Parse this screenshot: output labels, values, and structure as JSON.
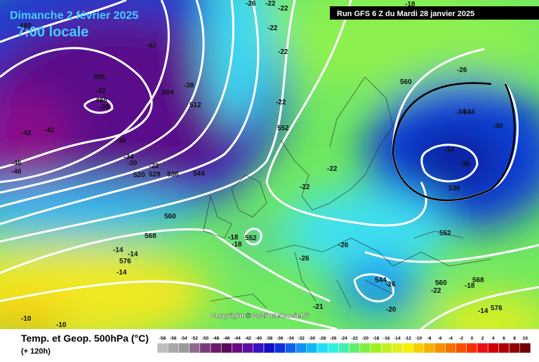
{
  "header": {
    "title": "Dimanche 2 février 2025",
    "time": "7:00 locale",
    "run": "Run GFS 6 Z du Mardi 28 janvier 2025"
  },
  "map": {
    "copyright": "Copyright © 2025 Meteociel.fr",
    "labels": [
      "480",
      "-42",
      "496",
      "-42",
      "488",
      "-38",
      "504",
      "-38",
      "512",
      "-42",
      "-42",
      "-46",
      "-46",
      "-38",
      "-34",
      "-30",
      "-22",
      "520",
      "528",
      "536",
      "544",
      "560",
      "568",
      "-14",
      "-14",
      "576",
      "-14",
      "-10",
      "-10",
      "-18",
      "-18",
      "552",
      "-26",
      "-26",
      "-22",
      "-22",
      "552",
      "-22",
      "-22",
      "-22",
      "-22",
      "-26",
      "-22",
      "-18",
      "560",
      "-26",
      "-34",
      "544",
      "-30",
      "-34",
      "-38",
      "536",
      "552",
      "544",
      "-26",
      "560",
      "-22",
      "568",
      "-18",
      "-14",
      "576",
      "-20",
      "-21"
    ]
  },
  "footer": {
    "title": "Temp. et Geop. 500hPa (°C)",
    "range": "(+ 120h)",
    "legend": {
      "labels": [
        "-58",
        "-56",
        "-54",
        "-52",
        "-50",
        "-48",
        "-46",
        "-44",
        "-42",
        "-40",
        "-38",
        "-36",
        "-34",
        "-32",
        "-30",
        "-28",
        "-26",
        "-24",
        "-22",
        "-20",
        "-18",
        "-16",
        "-14",
        "-12",
        "-10",
        "-8",
        "-6",
        "-4",
        "-2",
        "0",
        "2",
        "4",
        "6",
        "8",
        "10"
      ],
      "colors": [
        "#bdbdbd",
        "#a8a8a8",
        "#9a9a9a",
        "#8c6c8c",
        "#7a3a7a",
        "#6a1a6a",
        "#5a0a5a",
        "#6a0a80",
        "#5a10a0",
        "#3a10c0",
        "#1010c8",
        "#1030e0",
        "#1060f0",
        "#1090f8",
        "#10b8f8",
        "#20e0f8",
        "#30f0e0",
        "#40f0b0",
        "#60f070",
        "#80f040",
        "#a0f020",
        "#c0f020",
        "#e0f020",
        "#f8f000",
        "#f8d000",
        "#f8b000",
        "#f89000",
        "#f87000",
        "#f85000",
        "#f83000",
        "#e81010",
        "#d00000",
        "#b00000",
        "#900000",
        "#700000"
      ]
    }
  }
}
